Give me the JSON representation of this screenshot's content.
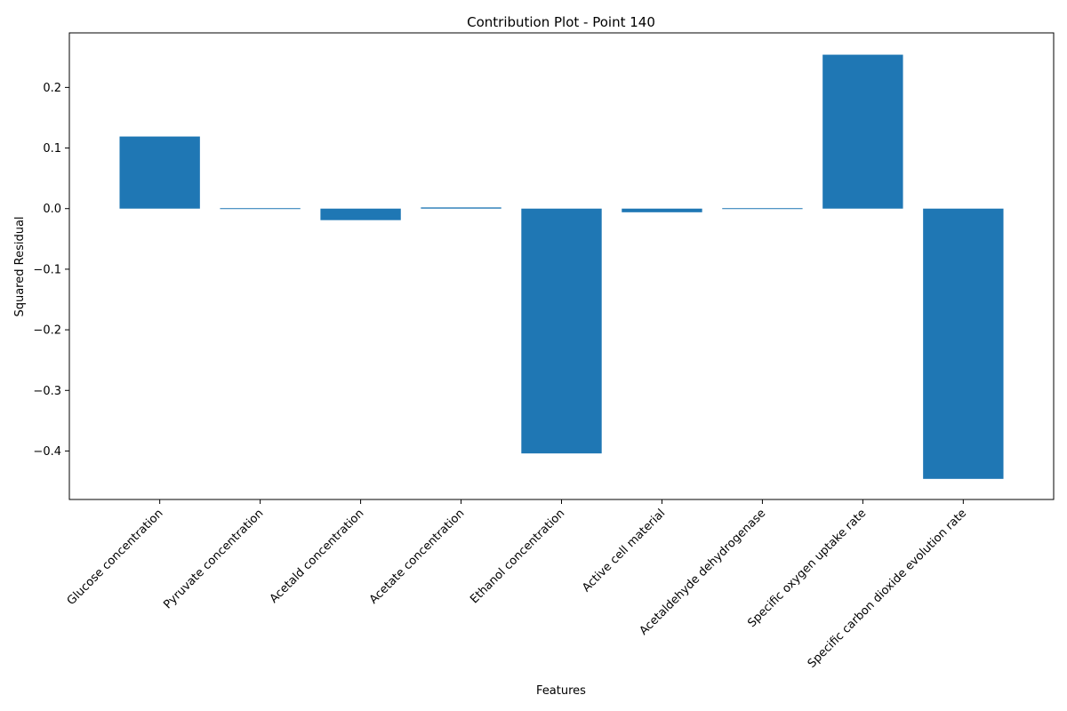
{
  "chart_data": {
    "type": "bar",
    "title": "Contribution Plot - Point 140",
    "xlabel": "Features",
    "ylabel": "Squared Residual",
    "categories": [
      "Glucose concentration",
      "Pyruvate concentration",
      "Acetald concentration",
      "Acetate concentration",
      "Ethanol concentration",
      "Active cell material",
      "Acetaldehyde dehydrogenase",
      "Specific oxygen uptake rate",
      "Specific carbon dioxide evolution rate"
    ],
    "values": [
      0.119,
      -0.001,
      -0.019,
      0.002,
      -0.404,
      -0.006,
      -0.001,
      0.254,
      -0.446
    ],
    "ylim": [
      -0.48,
      0.29
    ],
    "yticks": [
      -0.4,
      -0.3,
      -0.2,
      -0.1,
      0.0,
      0.1,
      0.2
    ],
    "ytick_labels": [
      "−0.4",
      "−0.3",
      "−0.2",
      "−0.1",
      "0.0",
      "0.1",
      "0.2"
    ],
    "bar_color": "#1f77b4",
    "grid": false,
    "legend": "none"
  }
}
